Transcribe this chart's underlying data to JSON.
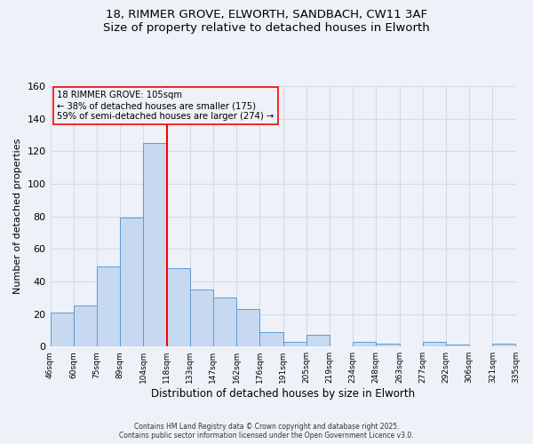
{
  "title_line1": "18, RIMMER GROVE, ELWORTH, SANDBACH, CW11 3AF",
  "title_line2": "Size of property relative to detached houses in Elworth",
  "xlabel": "Distribution of detached houses by size in Elworth",
  "ylabel": "Number of detached properties",
  "bin_edges": [
    "46sqm",
    "60sqm",
    "75sqm",
    "89sqm",
    "104sqm",
    "118sqm",
    "133sqm",
    "147sqm",
    "162sqm",
    "176sqm",
    "191sqm",
    "205sqm",
    "219sqm",
    "234sqm",
    "248sqm",
    "263sqm",
    "277sqm",
    "292sqm",
    "306sqm",
    "321sqm",
    "335sqm"
  ],
  "bar_heights": [
    21,
    25,
    49,
    79,
    125,
    48,
    35,
    30,
    23,
    9,
    3,
    7,
    0,
    3,
    2,
    0,
    3,
    1,
    0,
    2
  ],
  "bar_color": "#c6d9f0",
  "bar_edgecolor": "#5b9bd5",
  "vline_index": 5,
  "vline_color": "red",
  "annotation_text": "18 RIMMER GROVE: 105sqm\n← 38% of detached houses are smaller (175)\n59% of semi-detached houses are larger (274) →",
  "annotation_box_edgecolor": "red",
  "ylim": [
    0,
    160
  ],
  "yticks": [
    0,
    20,
    40,
    60,
    80,
    100,
    120,
    140,
    160
  ],
  "grid_color": "#d0dce8",
  "background_color": "#eef2f8",
  "footer_line1": "Contains HM Land Registry data © Crown copyright and database right 2025.",
  "footer_line2": "Contains public sector information licensed under the Open Government Licence v3.0."
}
